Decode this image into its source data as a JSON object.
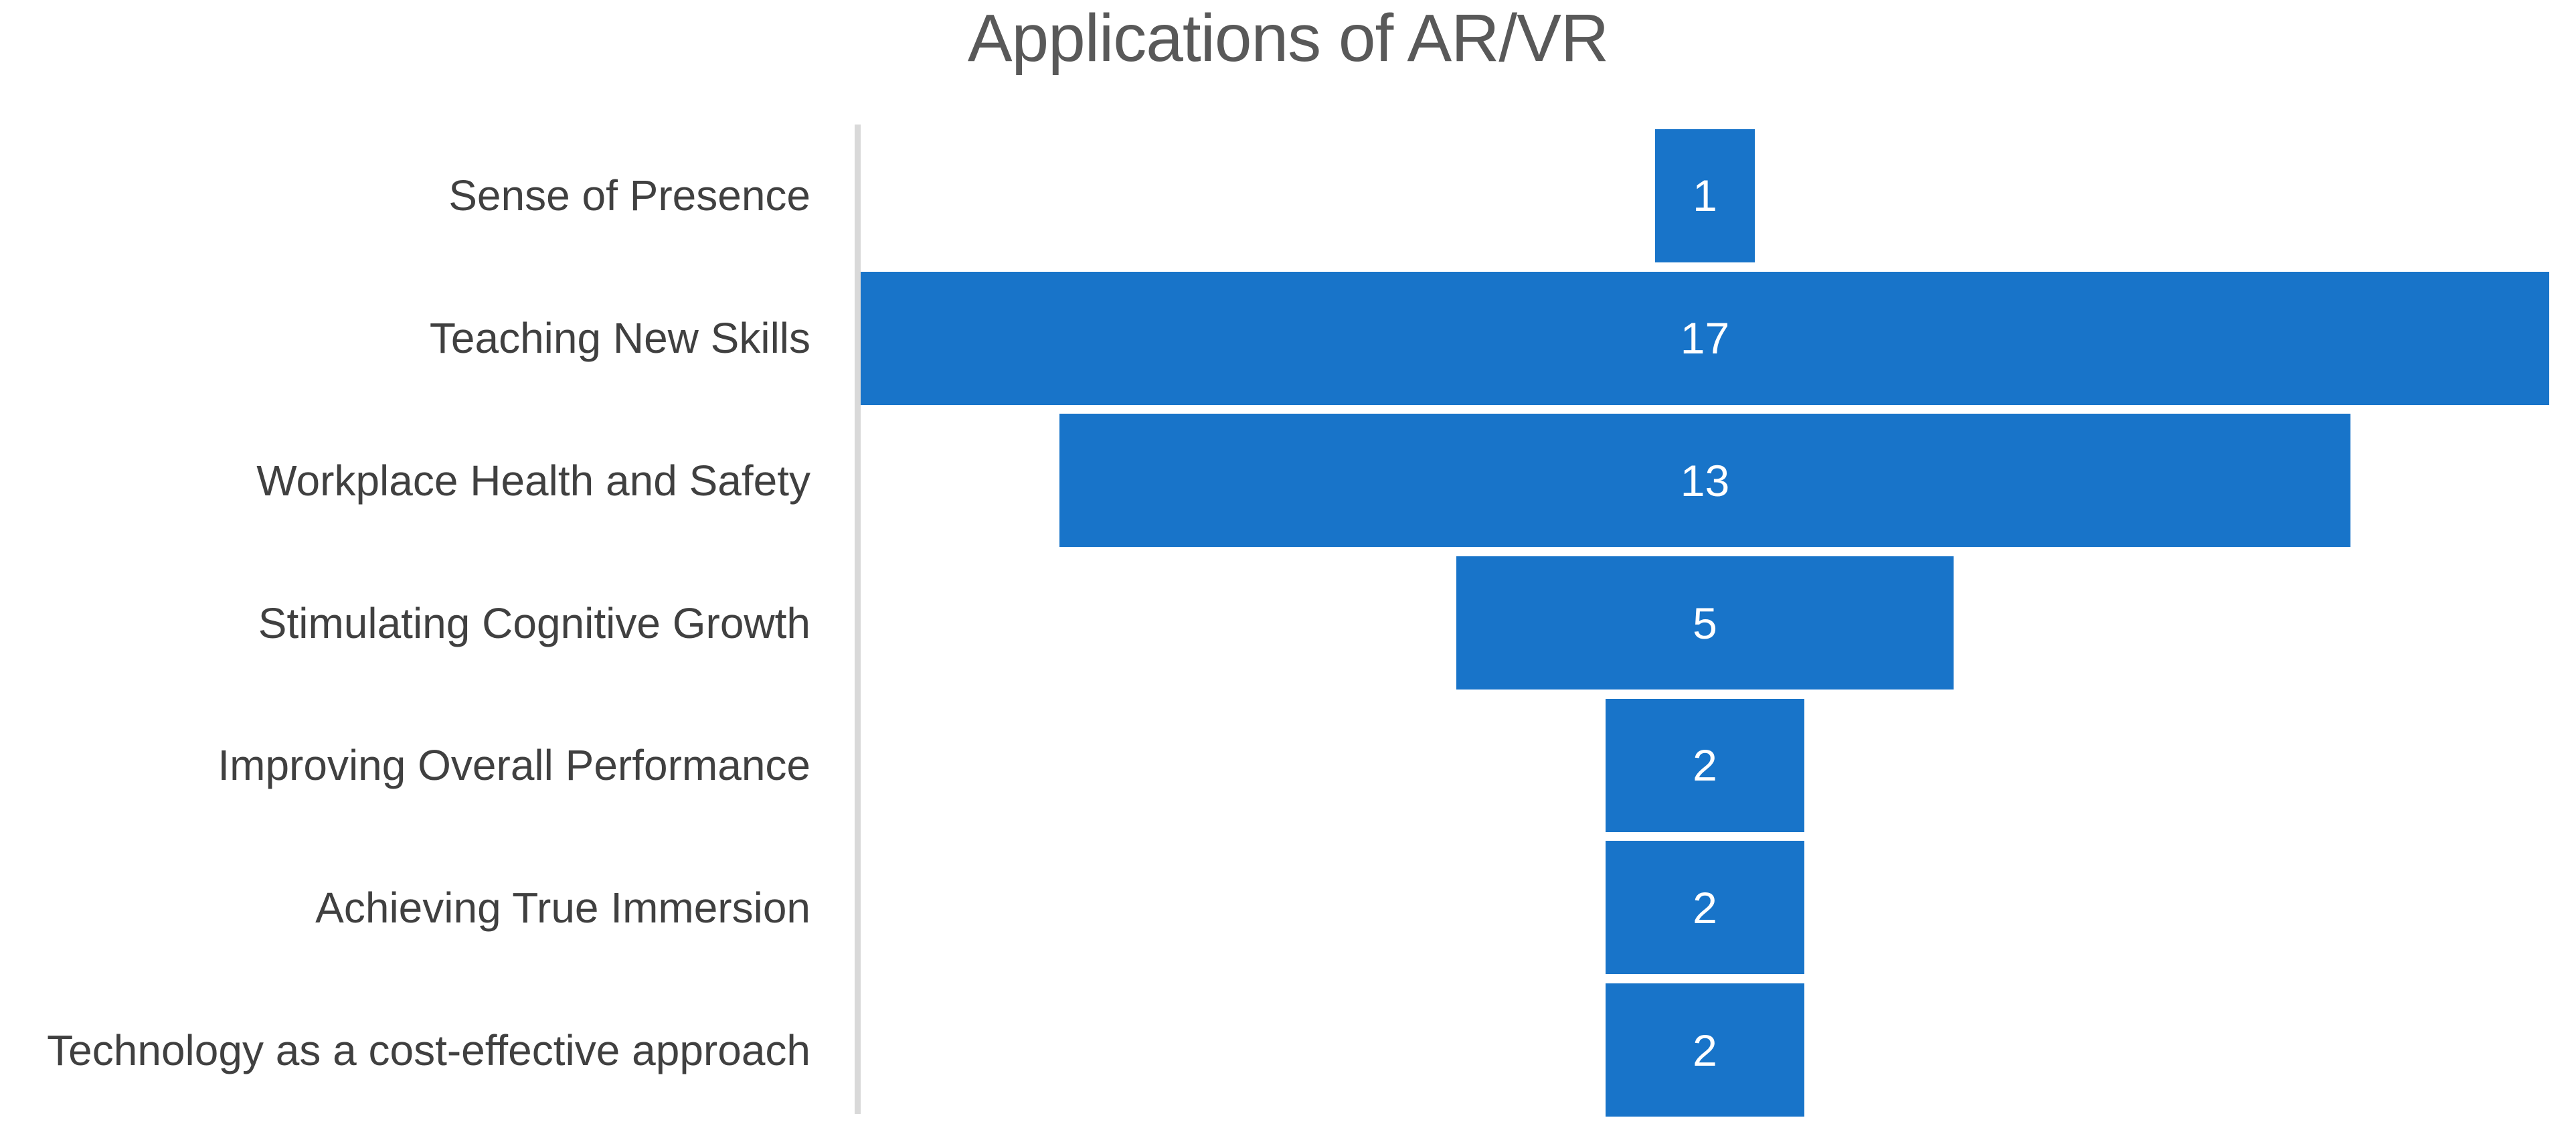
{
  "title": "Applications of AR/VR",
  "chart_data": {
    "type": "bar",
    "subtype": "funnel",
    "orientation": "horizontal-centered",
    "title": "Applications of AR/VR",
    "categories": [
      "Sense of Presence",
      "Teaching New Skills",
      "Workplace Health and Safety",
      "Stimulating Cognitive Growth",
      "Improving Overall Performance",
      "Achieving True Immersion",
      "Technology as a cost-effective approach"
    ],
    "values": [
      1,
      17,
      13,
      5,
      2,
      2,
      2
    ],
    "value_labels": [
      "1",
      "17",
      "13",
      "5",
      "2",
      "2",
      "2"
    ],
    "xlabel": "",
    "ylabel": "",
    "xlim": [
      0,
      17
    ],
    "grid": false,
    "legend": "none",
    "colors": {
      "bar": "#1874C9",
      "title_text": "#595959",
      "category_text": "#404040",
      "value_text": "#FFFFFF",
      "axis_line": "#D9D9D9"
    }
  }
}
